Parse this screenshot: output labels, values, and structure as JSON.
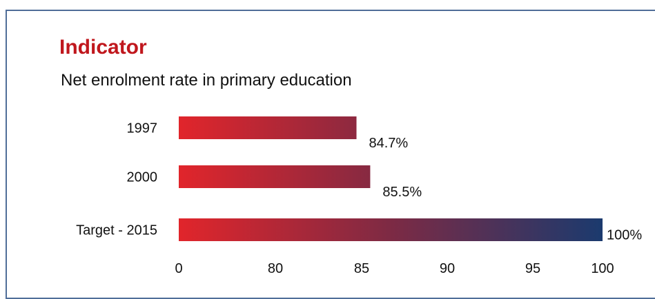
{
  "header": {
    "title": "Indicator",
    "subtitle": "Net enrolment rate in primary education"
  },
  "colors": {
    "bar_start": "#e1252b",
    "bar_mid": "#7d2a44",
    "bar_end": "#1b3a6e",
    "title": "#c0171d",
    "frame": "#4f6d98"
  },
  "chart_data": {
    "type": "bar",
    "orientation": "horizontal",
    "categories": [
      "1997",
      "2000",
      "Target - 2015"
    ],
    "values": [
      84.7,
      85.5,
      100
    ],
    "data_labels": [
      "84.7%",
      "85.5%",
      "100%"
    ],
    "axis": {
      "tick_labels": [
        "0",
        "80",
        "85",
        "90",
        "95",
        "100"
      ],
      "tick_values": [
        0,
        80,
        85,
        90,
        95,
        100
      ],
      "broken_scale": true
    },
    "grid": false,
    "legend": "none"
  }
}
